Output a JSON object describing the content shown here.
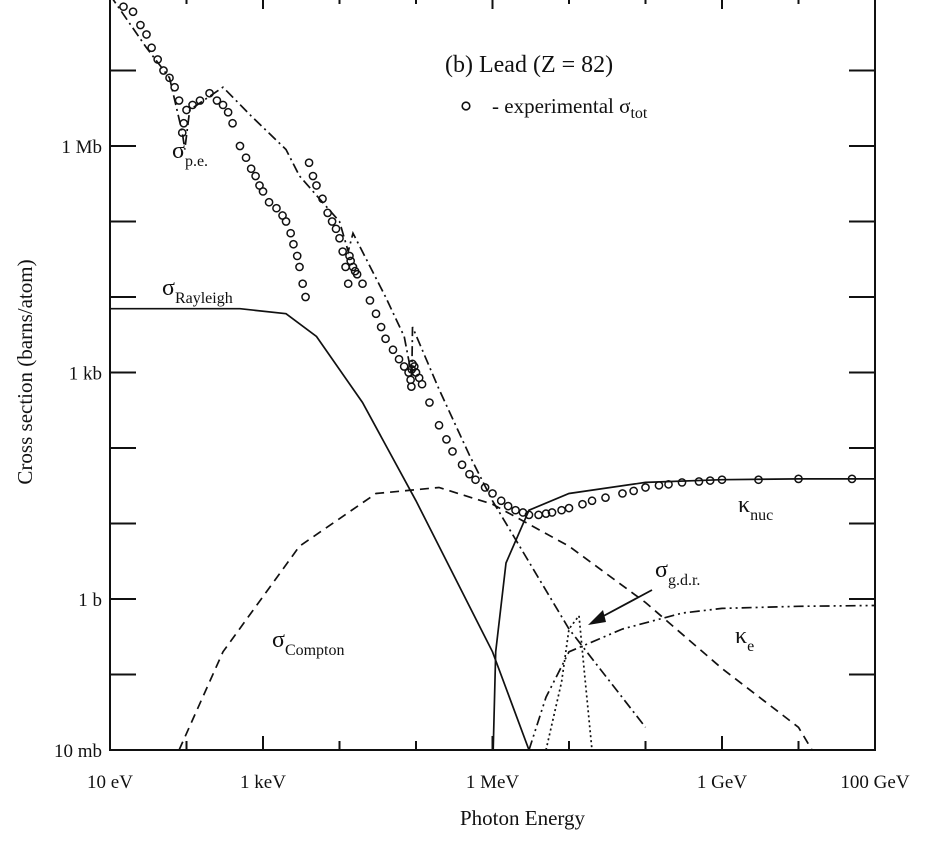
{
  "chart_data": {
    "type": "line",
    "title": "(b) Lead (Z = 82)",
    "xlabel": "Photon Energy",
    "ylabel": "Cross section  (barns/atom)",
    "x_scale": "log10",
    "y_scale": "log10",
    "xlim_eV": [
      10,
      100000000000
    ],
    "ylim_barns": [
      0.01,
      100000000
    ],
    "x_ticks": [
      {
        "value": 10,
        "label": "10 eV"
      },
      {
        "value": 1000,
        "label": "1 keV"
      },
      {
        "value": 1000000,
        "label": "1 MeV"
      },
      {
        "value": 1000000000,
        "label": "1 GeV"
      },
      {
        "value": 100000000000,
        "label": "100 GeV"
      }
    ],
    "y_ticks": [
      {
        "value": 0.01,
        "label": "10 mb"
      },
      {
        "value": 1,
        "label": "1 b"
      },
      {
        "value": 1000,
        "label": "1 kb"
      },
      {
        "value": 1000000,
        "label": "1 Mb"
      }
    ],
    "legend": {
      "marker": "o",
      "label": "- experimental σ",
      "label_sub": "tot"
    },
    "series": [
      {
        "name": "σp.e.",
        "label_main": "σ",
        "label_sub": "p.e.",
        "style": "dash-dot",
        "points": [
          [
            10,
            100000000
          ],
          [
            30,
            20000000
          ],
          [
            60,
            8000000
          ],
          [
            88,
            1500000
          ],
          [
            95,
            900000
          ],
          [
            110,
            3000000
          ],
          [
            300,
            6000000
          ],
          [
            700,
            2500000
          ],
          [
            2000,
            900000
          ],
          [
            3000,
            400000
          ],
          [
            10000,
            100000
          ],
          [
            13000,
            40000
          ],
          [
            15000,
            70000
          ],
          [
            40000,
            10000
          ],
          [
            70000,
            3000
          ],
          [
            88000,
            900
          ],
          [
            90000,
            4000
          ],
          [
            200000,
            600
          ],
          [
            500000,
            80
          ],
          [
            1000000,
            20
          ],
          [
            10000000,
            0.4
          ],
          [
            100000000,
            0.02
          ]
        ]
      },
      {
        "name": "σRayleigh",
        "label_main": "σ",
        "label_sub": "Rayleigh",
        "style": "solid",
        "points": [
          [
            10,
            7000
          ],
          [
            500,
            7000
          ],
          [
            2000,
            6000
          ],
          [
            5000,
            3000
          ],
          [
            20000,
            400
          ],
          [
            100000,
            20
          ],
          [
            1000000,
            0.2
          ],
          [
            3000000,
            0.01
          ]
        ]
      },
      {
        "name": "σCompton",
        "label_main": "σ",
        "label_sub": "Compton",
        "style": "dashed",
        "points": [
          [
            80,
            0.01
          ],
          [
            300,
            0.2
          ],
          [
            3000,
            5
          ],
          [
            30000,
            25
          ],
          [
            200000,
            30
          ],
          [
            1000000,
            18
          ],
          [
            10000000,
            5
          ],
          [
            100000000,
            0.9
          ],
          [
            1000000000,
            0.12
          ],
          [
            10000000000,
            0.02
          ],
          [
            15000000000,
            0.01
          ]
        ]
      },
      {
        "name": "κnuc",
        "label_main": "κ",
        "label_sub": "nuc",
        "style": "solid",
        "points": [
          [
            1020000,
            0.01
          ],
          [
            1100000,
            0.2
          ],
          [
            1500000,
            3
          ],
          [
            3000000,
            15
          ],
          [
            10000000,
            25
          ],
          [
            100000000,
            35
          ],
          [
            1000000000,
            38
          ],
          [
            10000000000,
            39
          ],
          [
            100000000000,
            39
          ]
        ]
      },
      {
        "name": "κe",
        "label_main": "κ",
        "label_sub": "e",
        "style": "dash-dot-dot",
        "points": [
          [
            3000000,
            0.01
          ],
          [
            5000000,
            0.05
          ],
          [
            10000000,
            0.2
          ],
          [
            50000000,
            0.4
          ],
          [
            300000000,
            0.65
          ],
          [
            1000000000,
            0.75
          ],
          [
            10000000000,
            0.8
          ],
          [
            100000000000,
            0.82
          ]
        ]
      },
      {
        "name": "σg.d.r.",
        "label_main": "σ",
        "label_sub": "g.d.r.",
        "style": "dotted",
        "points": [
          [
            5000000,
            0.01
          ],
          [
            8000000,
            0.08
          ],
          [
            10000000,
            0.4
          ],
          [
            13500000,
            0.6
          ],
          [
            16000000,
            0.1
          ],
          [
            20000000,
            0.01
          ]
        ]
      },
      {
        "name": "experimental σtot",
        "style": "markers",
        "points": [
          [
            15,
            70000000
          ],
          [
            20,
            60000000
          ],
          [
            25,
            40000000
          ],
          [
            30,
            30000000
          ],
          [
            35,
            20000000
          ],
          [
            42,
            14000000
          ],
          [
            50,
            10000000
          ],
          [
            60,
            8000000
          ],
          [
            70,
            6000000
          ],
          [
            80,
            4000000
          ],
          [
            88,
            1500000
          ],
          [
            92,
            2000000
          ],
          [
            100,
            3000000
          ],
          [
            120,
            3500000
          ],
          [
            150,
            4000000
          ],
          [
            200,
            5000000
          ],
          [
            250,
            4000000
          ],
          [
            300,
            3500000
          ],
          [
            350,
            2800000
          ],
          [
            400,
            2000000
          ],
          [
            500,
            1000000
          ],
          [
            600,
            700000
          ],
          [
            700,
            500000
          ],
          [
            800,
            400000
          ],
          [
            900,
            300000
          ],
          [
            1000,
            250000
          ],
          [
            1200,
            180000
          ],
          [
            1500,
            150000
          ],
          [
            1800,
            120000
          ],
          [
            2000,
            100000
          ],
          [
            2300,
            70000
          ],
          [
            2500,
            50000
          ],
          [
            2800,
            35000
          ],
          [
            3000,
            25000
          ],
          [
            3300,
            15000
          ],
          [
            3600,
            10000
          ],
          [
            4000,
            600000
          ],
          [
            4500,
            400000
          ],
          [
            5000,
            300000
          ],
          [
            6000,
            200000
          ],
          [
            7000,
            130000
          ],
          [
            8000,
            100000
          ],
          [
            9000,
            80000
          ],
          [
            10000,
            60000
          ],
          [
            11000,
            40000
          ],
          [
            12000,
            25000
          ],
          [
            13000,
            15000
          ],
          [
            13500,
            35000
          ],
          [
            14000,
            30000
          ],
          [
            15000,
            25000
          ],
          [
            16000,
            22000
          ],
          [
            17000,
            20000
          ],
          [
            20000,
            15000
          ],
          [
            25000,
            9000
          ],
          [
            30000,
            6000
          ],
          [
            35000,
            4000
          ],
          [
            40000,
            2800
          ],
          [
            50000,
            2000
          ],
          [
            60000,
            1500
          ],
          [
            70000,
            1200
          ],
          [
            80000,
            1000
          ],
          [
            85000,
            800
          ],
          [
            87000,
            650
          ],
          [
            88000,
            1100
          ],
          [
            90000,
            1300
          ],
          [
            95000,
            1200
          ],
          [
            100000,
            1000
          ],
          [
            110000,
            850
          ],
          [
            120000,
            700
          ],
          [
            150000,
            400
          ],
          [
            200000,
            200
          ],
          [
            250000,
            130
          ],
          [
            300000,
            90
          ],
          [
            400000,
            60
          ],
          [
            500000,
            45
          ],
          [
            600000,
            38
          ],
          [
            800000,
            30
          ],
          [
            1000000,
            25
          ],
          [
            1300000,
            20
          ],
          [
            1600000,
            17
          ],
          [
            2000000,
            15
          ],
          [
            2500000,
            14
          ],
          [
            3000000,
            13
          ],
          [
            4000000,
            13
          ],
          [
            5000000,
            13.5
          ],
          [
            6000000,
            14
          ],
          [
            8000000,
            15
          ],
          [
            10000000,
            16
          ],
          [
            15000000,
            18
          ],
          [
            20000000,
            20
          ],
          [
            30000000,
            22
          ],
          [
            50000000,
            25
          ],
          [
            70000000,
            27
          ],
          [
            100000000,
            30
          ],
          [
            150000000,
            32
          ],
          [
            200000000,
            33
          ],
          [
            300000000,
            35
          ],
          [
            500000000,
            36
          ],
          [
            700000000,
            37
          ],
          [
            1000000000,
            38
          ],
          [
            3000000000,
            38
          ],
          [
            10000000000,
            39
          ],
          [
            50000000000,
            39
          ]
        ]
      }
    ],
    "annotations": [
      {
        "main": "σ",
        "sub": "p.e."
      },
      {
        "main": "σ",
        "sub": "Rayleigh"
      },
      {
        "main": "σ",
        "sub": "Compton"
      },
      {
        "main": "κ",
        "sub": "nuc"
      },
      {
        "main": "κ",
        "sub": "e"
      },
      {
        "main": "σ",
        "sub": "g.d.r."
      }
    ]
  },
  "colors": {
    "line": "#111111",
    "background": "#ffffff"
  }
}
